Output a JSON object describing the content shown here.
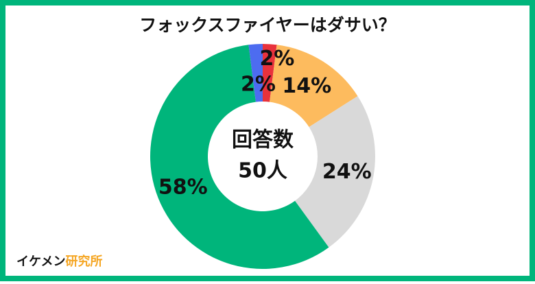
{
  "chart_data": {
    "type": "pie",
    "title": "フォックスファイヤーはダサい？",
    "values": [
      2,
      14,
      24,
      58,
      2
    ],
    "value_labels": [
      "2%",
      "14%",
      "24%",
      "58%",
      "2%"
    ],
    "colors": [
      "#e8323c",
      "#fdbb5e",
      "#d9d9d9",
      "#00b57b",
      "#4d6cf0"
    ],
    "center_label": [
      "回答数",
      "50人"
    ]
  },
  "footer": {
    "brand": "イケメン",
    "brand_accent": "研究所"
  }
}
